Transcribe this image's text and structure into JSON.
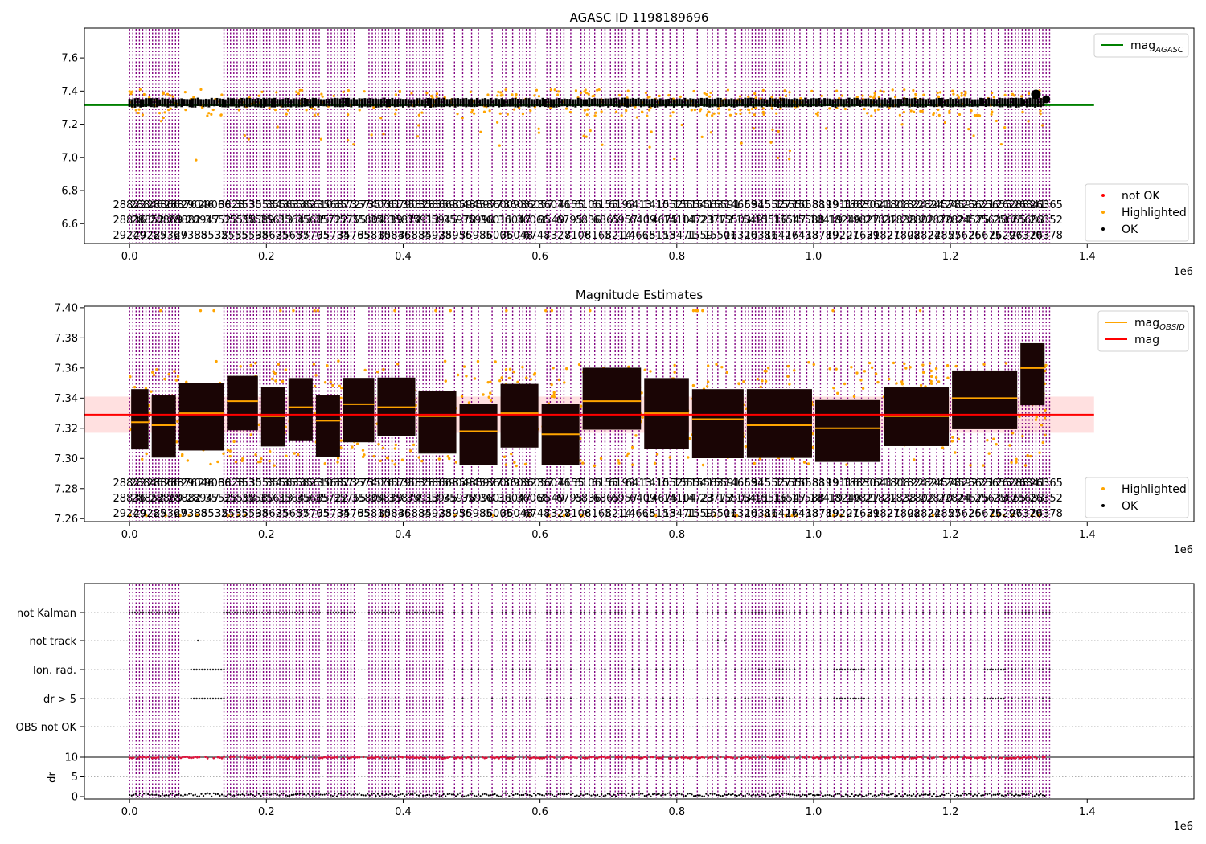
{
  "figure": {
    "x_offset_label": "1e6",
    "x_ticks": [
      0.0,
      0.2,
      0.4,
      0.6,
      0.8,
      1.0,
      1.2,
      1.4
    ],
    "x_tick_labels": [
      "0.0",
      "0.2",
      "0.4",
      "0.6",
      "0.8",
      "1.0",
      "1.2",
      "1.4"
    ],
    "x_range": [
      -0.066,
      1.556
    ],
    "obsid_rows": [
      [
        "28822",
        "28846",
        "28866",
        "28876",
        "29046",
        "29066",
        "3828",
        "3530",
        "35534",
        "35563",
        "35582",
        "35610",
        "35687",
        "35727",
        "35740",
        "35761",
        "35790",
        "35828",
        "35866",
        "35904",
        "35945",
        "35977",
        "36009",
        "36032",
        "36057",
        "36076",
        "4155",
        "6106",
        "6155",
        "6199",
        "6413",
        "1410",
        "15525",
        "15554",
        "15563",
        "15591",
        "14669",
        "5345",
        "15527",
        "15550",
        "15588",
        "3199",
        "19116",
        "18830",
        "20641",
        "21808",
        "21824",
        "22824",
        "24578",
        "24592",
        "25621",
        "25655",
        "26288",
        "26341",
        "26365"
      ],
      [
        "28836",
        "28852",
        "28869",
        "28882",
        "28947",
        "35523",
        "35558",
        "35589",
        "35613",
        "35645",
        "35685",
        "35722",
        "35755",
        "35804",
        "35839",
        "35874",
        "35913",
        "35945",
        "35978",
        "35998",
        "36011",
        "36047",
        "36066",
        "8549",
        "6795",
        "6836",
        "6865",
        "6957",
        "6409",
        "14675",
        "14104",
        "14723",
        "23773",
        "15503",
        "15491",
        "15516",
        "15547",
        "15588",
        "18419",
        "18240",
        "19827",
        "21832",
        "21838",
        "22802",
        "22870",
        "22824",
        "24575",
        "25638",
        "25665",
        "25683",
        "26352"
      ],
      [
        "29249",
        "29285",
        "29367",
        "29388",
        "35532",
        "35555",
        "35598",
        "35625",
        "35657",
        "35705",
        "35734",
        "35765",
        "35810",
        "35846",
        "35884",
        "35928",
        "35956",
        "35985",
        "36005",
        "36048",
        "6748",
        "7327",
        "8106",
        "8165",
        "8214",
        "14668",
        "15153",
        "15471",
        "1559",
        "15501",
        "16320",
        "16381",
        "16427",
        "16438",
        "18789",
        "19207",
        "21639",
        "21827",
        "21808",
        "22824",
        "22857",
        "25626",
        "25675",
        "26297",
        "26370",
        "26378"
      ]
    ]
  },
  "panels": [
    {
      "id": "agasc",
      "title": "AGASC ID 1198189696",
      "yticks": [
        "6.6",
        "6.8",
        "7.0",
        "7.2",
        "7.4",
        "7.6"
      ],
      "legend_upper": [
        {
          "label": "mag",
          "subscript": "AGASC",
          "color": "#008000",
          "kind": "line"
        }
      ],
      "legend_lower": [
        {
          "label": "not OK",
          "color": "#ff0000",
          "kind": "dot"
        },
        {
          "label": "Highlighted",
          "color": "#ffa500",
          "kind": "dot"
        },
        {
          "label": "OK",
          "color": "#000000",
          "kind": "dot"
        }
      ]
    },
    {
      "id": "estimates",
      "title": "Magnitude Estimates",
      "yticks": [
        "7.26",
        "7.28",
        "7.30",
        "7.32",
        "7.34",
        "7.36",
        "7.38",
        "7.40"
      ],
      "legend_upper": [
        {
          "label": "mag",
          "subscript": "OBSID",
          "color": "#ffa500",
          "kind": "line"
        },
        {
          "label": "mag",
          "subscript": "",
          "color": "#ff0000",
          "kind": "line"
        }
      ],
      "legend_lower": [
        {
          "label": "Highlighted",
          "color": "#ffa500",
          "kind": "dot"
        },
        {
          "label": "OK",
          "color": "#000000",
          "kind": "dot"
        }
      ]
    },
    {
      "id": "flags",
      "title": "",
      "flag_labels": [
        "not Kalman",
        "not track",
        "Ion. rad.",
        "dr > 5",
        "OBS not OK"
      ],
      "dr_label": "dr",
      "dr_ticks": [
        "0",
        "5",
        "10"
      ]
    }
  ],
  "chart_data": [
    {
      "type": "scatter",
      "title": "AGASC ID 1198189696",
      "xlabel": "",
      "ylabel": "",
      "x_scale_note": "1e6",
      "ylim": [
        6.48,
        7.78
      ],
      "reference_lines": [
        {
          "name": "mag_AGASC",
          "y": 7.315,
          "color": "#008000"
        }
      ],
      "series": [
        {
          "name": "OK",
          "color": "#000000",
          "band": [
            7.3,
            7.36
          ]
        },
        {
          "name": "Highlighted",
          "color": "#ffa500"
        },
        {
          "name": "not OK",
          "color": "#ff0000"
        }
      ]
    },
    {
      "type": "scatter",
      "title": "Magnitude Estimates",
      "xlabel": "",
      "ylabel": "",
      "x_scale_note": "1e6",
      "ylim": [
        7.258,
        7.401
      ],
      "reference_lines": [
        {
          "name": "mag",
          "y": 7.329,
          "band": [
            7.317,
            7.341
          ],
          "color": "#ff0000"
        }
      ],
      "segments": [
        {
          "x": [
            0.0,
            0.03
          ],
          "y": 7.324
        },
        {
          "x": [
            0.03,
            0.07
          ],
          "y": 7.322
        },
        {
          "x": [
            0.07,
            0.14
          ],
          "y": 7.33
        },
        {
          "x": [
            0.14,
            0.19
          ],
          "y": 7.338
        },
        {
          "x": [
            0.19,
            0.23
          ],
          "y": 7.328
        },
        {
          "x": [
            0.23,
            0.27
          ],
          "y": 7.334
        },
        {
          "x": [
            0.27,
            0.31
          ],
          "y": 7.325
        },
        {
          "x": [
            0.31,
            0.36
          ],
          "y": 7.336
        },
        {
          "x": [
            0.36,
            0.42
          ],
          "y": 7.334
        },
        {
          "x": [
            0.42,
            0.48
          ],
          "y": 7.328
        },
        {
          "x": [
            0.48,
            0.54
          ],
          "y": 7.318
        },
        {
          "x": [
            0.54,
            0.6
          ],
          "y": 7.33
        },
        {
          "x": [
            0.6,
            0.66
          ],
          "y": 7.316
        },
        {
          "x": [
            0.66,
            0.75
          ],
          "y": 7.338
        },
        {
          "x": [
            0.75,
            0.82
          ],
          "y": 7.33
        },
        {
          "x": [
            0.82,
            0.9
          ],
          "y": 7.326
        },
        {
          "x": [
            0.9,
            1.0
          ],
          "y": 7.322
        },
        {
          "x": [
            1.0,
            1.1
          ],
          "y": 7.32
        },
        {
          "x": [
            1.1,
            1.2
          ],
          "y": 7.328
        },
        {
          "x": [
            1.2,
            1.3
          ],
          "y": 7.34
        },
        {
          "x": [
            1.3,
            1.34
          ],
          "y": 7.36
        }
      ]
    },
    {
      "type": "scatter",
      "title": "",
      "xlabel": "",
      "ylabel": "dr",
      "x_scale_note": "1e6",
      "y_categories": [
        "not Kalman",
        "not track",
        "Ion. rad.",
        "dr > 5",
        "OBS not OK"
      ],
      "dr_ylim": [
        0,
        10
      ],
      "dr_threshold": 10
    }
  ]
}
